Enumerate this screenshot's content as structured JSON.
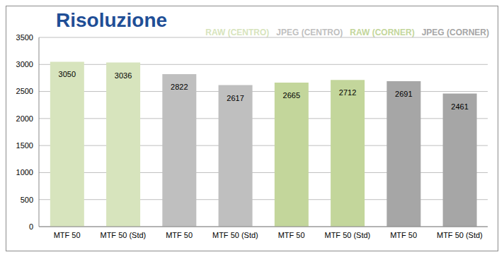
{
  "chart_data": {
    "type": "bar",
    "title": "Risoluzione",
    "categories": [
      "MTF 50",
      "MTF 50 (Std)",
      "MTF 50",
      "MTF 50 (Std)",
      "MTF 50",
      "MTF 50 (Std)",
      "MTF 50",
      "MTF 50 (Std)"
    ],
    "series": [
      {
        "name": "RAW (CENTRO)",
        "color": "#d7e4bd",
        "values": [
          3050,
          3036,
          null,
          null,
          null,
          null,
          null,
          null
        ]
      },
      {
        "name": "JPEG (CENTRO)",
        "color": "#bfbfbf",
        "values": [
          null,
          null,
          2822,
          2617,
          null,
          null,
          null,
          null
        ]
      },
      {
        "name": "RAW (CORNER)",
        "color": "#c3d69b",
        "values": [
          null,
          null,
          null,
          null,
          2665,
          2712,
          null,
          null
        ]
      },
      {
        "name": "JPEG (CORNER)",
        "color": "#a6a6a6",
        "values": [
          null,
          null,
          null,
          null,
          null,
          null,
          2691,
          2461
        ]
      }
    ],
    "ylim": [
      0,
      3500
    ],
    "yticks": [
      0,
      500,
      1000,
      1500,
      2000,
      2500,
      3000,
      3500
    ],
    "grid": true,
    "stacked": true,
    "data_labels": true,
    "legend": "upper right"
  }
}
